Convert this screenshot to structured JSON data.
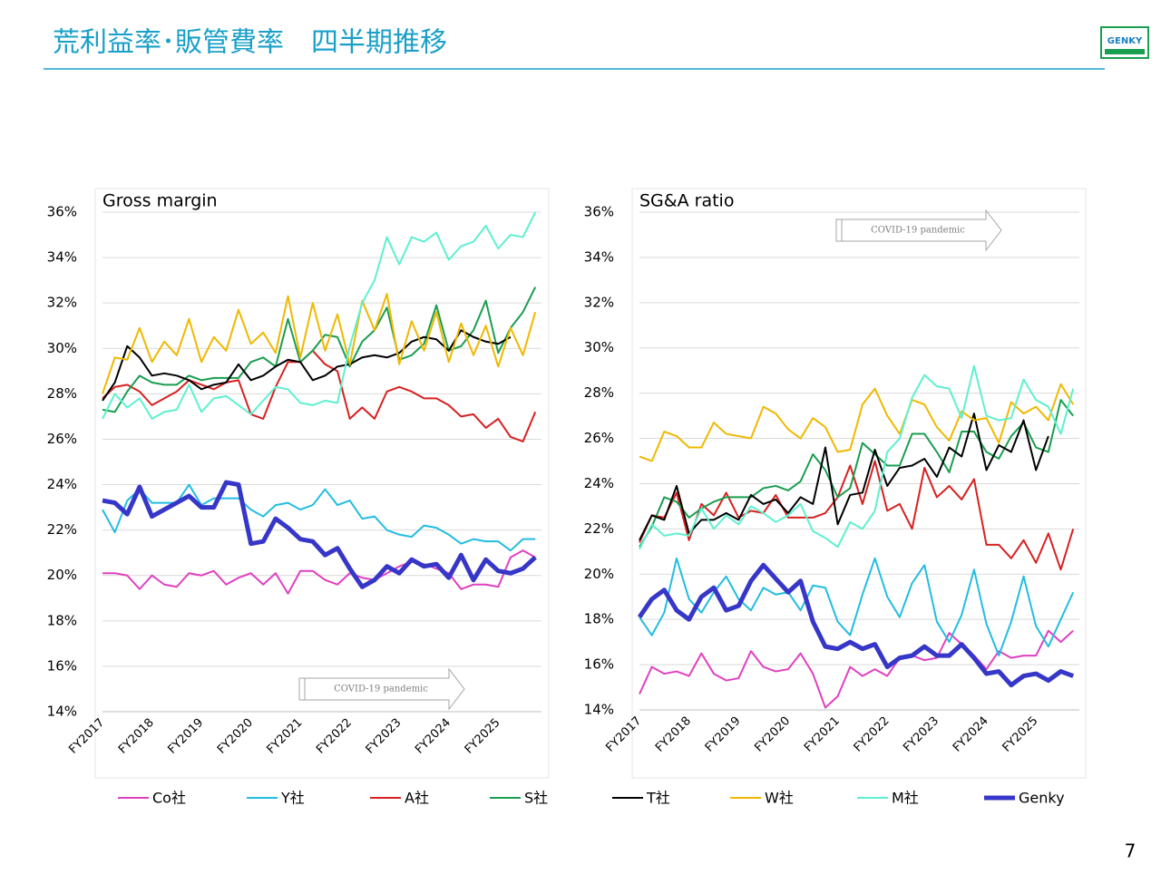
{
  "header": {
    "title": "荒利益率･販管費率　四半期推移",
    "logo": "GENKY"
  },
  "page_number": "7",
  "chart_data": [
    {
      "type": "line",
      "title": "Gross margin",
      "annotation": "COVID-19 pandemic",
      "categories": [
        "FY2017",
        null,
        null,
        null,
        "FY2018",
        null,
        null,
        null,
        "FY2019",
        null,
        null,
        null,
        "FY2020",
        null,
        null,
        null,
        "FY2021",
        null,
        null,
        null,
        "FY2022",
        null,
        null,
        null,
        "FY2023",
        null,
        null,
        null,
        "FY2024",
        null,
        null,
        null,
        "FY2025",
        null,
        null,
        null
      ],
      "ylim": [
        14,
        36
      ],
      "yticks": [
        {
          "value": 14,
          "label": "14%"
        },
        {
          "value": 16,
          "label": "16%"
        },
        {
          "value": 18,
          "label": "18%"
        },
        {
          "value": 20,
          "label": "20%"
        },
        {
          "value": 22,
          "label": "22%"
        },
        {
          "value": 24,
          "label": "24%"
        },
        {
          "value": 26,
          "label": "26%"
        },
        {
          "value": 28,
          "label": "28%"
        },
        {
          "value": 30,
          "label": "30%"
        },
        {
          "value": 32,
          "label": "32%"
        },
        {
          "value": 34,
          "label": "34%"
        },
        {
          "value": 36,
          "label": "36%"
        }
      ],
      "grid": true,
      "series": [
        {
          "name": "Co社",
          "color": "#e040c0",
          "values": [
            20.1,
            20.1,
            20.0,
            19.4,
            20.0,
            19.6,
            19.5,
            20.1,
            20.0,
            20.2,
            19.6,
            19.9,
            20.1,
            19.6,
            20.1,
            19.2,
            20.2,
            20.2,
            19.8,
            19.6,
            20.1,
            19.9,
            19.8,
            20.1,
            20.4,
            20.6,
            20.5,
            20.3,
            20.1,
            19.4,
            19.6,
            19.6,
            19.5,
            20.8,
            21.1,
            20.8
          ]
        },
        {
          "name": "Y社",
          "color": "#22bde0",
          "values": [
            22.9,
            21.9,
            23.3,
            23.8,
            23.2,
            23.2,
            23.2,
            24.0,
            23.1,
            23.4,
            23.4,
            23.4,
            22.9,
            22.6,
            23.1,
            23.2,
            22.9,
            23.1,
            23.8,
            23.1,
            23.3,
            22.5,
            22.6,
            22.0,
            21.8,
            21.7,
            22.2,
            22.1,
            21.8,
            21.4,
            21.6,
            21.5,
            21.5,
            21.1,
            21.6,
            21.6
          ]
        },
        {
          "name": "A社",
          "color": "#d82020",
          "values": [
            27.8,
            28.3,
            28.4,
            28.1,
            27.5,
            27.8,
            28.1,
            28.6,
            28.4,
            28.2,
            28.5,
            28.6,
            27.1,
            26.9,
            28.3,
            29.4,
            29.4,
            29.9,
            29.3,
            29.0,
            26.9,
            27.4,
            26.9,
            28.1,
            28.3,
            28.1,
            27.8,
            27.8,
            27.5,
            27.0,
            27.1,
            26.5,
            26.9,
            26.1,
            25.9,
            27.2
          ]
        },
        {
          "name": "S社",
          "color": "#1a9e50",
          "values": [
            27.3,
            27.2,
            28.1,
            28.8,
            28.5,
            28.4,
            28.4,
            28.8,
            28.6,
            28.7,
            28.7,
            28.7,
            29.4,
            29.6,
            29.2,
            31.3,
            29.4,
            29.9,
            30.6,
            30.5,
            29.2,
            30.3,
            30.8,
            31.8,
            29.5,
            29.7,
            30.2,
            31.9,
            29.9,
            30.1,
            30.8,
            32.1,
            29.8,
            30.9,
            31.6,
            32.7
          ]
        },
        {
          "name": "T社",
          "color": "#000000",
          "values": [
            27.7,
            28.5,
            30.1,
            29.6,
            28.8,
            28.9,
            28.8,
            28.6,
            28.2,
            28.4,
            28.5,
            29.3,
            28.6,
            28.8,
            29.2,
            29.5,
            29.4,
            28.6,
            28.8,
            29.2,
            29.3,
            29.6,
            29.7,
            29.6,
            29.8,
            30.3,
            30.5,
            30.4,
            29.9,
            30.8,
            30.5,
            30.3,
            30.2,
            30.5,
            null,
            null
          ]
        },
        {
          "name": "W社",
          "color": "#f0b800",
          "values": [
            28.0,
            29.6,
            29.5,
            30.9,
            29.4,
            30.3,
            29.7,
            31.3,
            29.4,
            30.5,
            29.9,
            31.7,
            30.2,
            30.7,
            29.8,
            32.3,
            29.6,
            32.0,
            29.9,
            31.5,
            29.3,
            32.1,
            30.8,
            32.4,
            29.3,
            31.2,
            29.9,
            31.6,
            29.4,
            31.1,
            29.7,
            31.0,
            29.2,
            30.9,
            29.7,
            31.6
          ]
        },
        {
          "name": "M社",
          "color": "#5ef0d0",
          "values": [
            26.9,
            28.0,
            27.4,
            27.8,
            26.9,
            27.2,
            27.3,
            28.4,
            27.2,
            27.8,
            27.9,
            27.5,
            27.1,
            27.7,
            28.3,
            28.2,
            27.6,
            27.5,
            27.7,
            27.6,
            30.1,
            32.0,
            33.0,
            34.9,
            33.7,
            34.9,
            34.7,
            35.1,
            33.9,
            34.5,
            34.7,
            35.4,
            34.4,
            35.0,
            34.9,
            36.0
          ]
        },
        {
          "name": "Genky",
          "color": "#3636c8",
          "values": [
            23.3,
            23.2,
            22.7,
            23.9,
            22.6,
            22.9,
            23.2,
            23.5,
            23.0,
            23.0,
            24.1,
            24.0,
            21.4,
            21.5,
            22.5,
            22.1,
            21.6,
            21.5,
            20.9,
            21.2,
            20.3,
            19.5,
            19.8,
            20.4,
            20.1,
            20.7,
            20.4,
            20.5,
            19.9,
            20.9,
            19.8,
            20.7,
            20.2,
            20.1,
            20.3,
            20.8
          ]
        }
      ]
    },
    {
      "type": "line",
      "title": "SG&A ratio",
      "annotation": "COVID-19 pandemic",
      "categories": [
        "FY2017",
        null,
        null,
        null,
        "FY2018",
        null,
        null,
        null,
        "FY2019",
        null,
        null,
        null,
        "FY2020",
        null,
        null,
        null,
        "FY2021",
        null,
        null,
        null,
        "FY2022",
        null,
        null,
        null,
        "FY2023",
        null,
        null,
        null,
        "FY2024",
        null,
        null,
        null,
        "FY2025",
        null,
        null,
        null
      ],
      "ylim": [
        14,
        36
      ],
      "yticks": [
        {
          "value": 14,
          "label": "14%"
        },
        {
          "value": 16,
          "label": "16%"
        },
        {
          "value": 18,
          "label": "18%"
        },
        {
          "value": 20,
          "label": "20%"
        },
        {
          "value": 22,
          "label": "22%"
        },
        {
          "value": 24,
          "label": "24%"
        },
        {
          "value": 26,
          "label": "26%"
        },
        {
          "value": 28,
          "label": "28%"
        },
        {
          "value": 30,
          "label": "30%"
        },
        {
          "value": 32,
          "label": "32%"
        },
        {
          "value": 34,
          "label": "34%"
        },
        {
          "value": 36,
          "label": "36%"
        }
      ],
      "grid": true,
      "series": [
        {
          "name": "Co社",
          "color": "#e040c0",
          "values": [
            14.7,
            15.9,
            15.6,
            15.7,
            15.5,
            16.5,
            15.6,
            15.3,
            15.4,
            16.6,
            15.9,
            15.7,
            15.8,
            16.5,
            15.6,
            14.1,
            14.6,
            15.9,
            15.5,
            15.8,
            15.5,
            16.3,
            16.4,
            16.2,
            16.3,
            17.4,
            16.9,
            16.4,
            15.8,
            16.6,
            16.3,
            16.4,
            16.4,
            17.5,
            17.0,
            17.5
          ]
        },
        {
          "name": "Y社",
          "color": "#22bde0",
          "values": [
            18.1,
            17.3,
            18.3,
            20.7,
            18.9,
            18.3,
            19.2,
            19.9,
            18.9,
            18.4,
            19.4,
            19.1,
            19.2,
            18.4,
            19.5,
            19.4,
            17.9,
            17.3,
            19.1,
            20.7,
            19.0,
            18.1,
            19.6,
            20.4,
            17.9,
            17.0,
            18.2,
            20.2,
            17.8,
            16.4,
            17.9,
            19.9,
            17.7,
            16.8,
            18.0,
            19.2
          ]
        },
        {
          "name": "A社",
          "color": "#d82020",
          "values": [
            21.4,
            22.6,
            22.5,
            23.6,
            21.5,
            23.1,
            22.6,
            23.6,
            22.5,
            22.8,
            22.7,
            23.5,
            22.5,
            22.5,
            22.5,
            22.7,
            23.4,
            24.8,
            23.1,
            25.0,
            22.8,
            23.1,
            22.0,
            24.7,
            23.4,
            23.9,
            23.3,
            24.2,
            21.3,
            21.3,
            20.7,
            21.5,
            20.5,
            21.8,
            20.2,
            22.0
          ]
        },
        {
          "name": "S社",
          "color": "#1a9e50",
          "values": [
            21.2,
            22.1,
            23.4,
            23.2,
            22.5,
            22.9,
            23.2,
            23.4,
            23.4,
            23.4,
            23.8,
            23.9,
            23.7,
            24.1,
            25.3,
            24.6,
            23.4,
            23.8,
            25.8,
            25.3,
            24.8,
            24.8,
            26.2,
            26.2,
            25.4,
            24.5,
            26.3,
            26.3,
            25.4,
            25.1,
            26.1,
            26.7,
            25.6,
            25.4,
            27.7,
            27.0
          ]
        },
        {
          "name": "T社",
          "color": "#000000",
          "values": [
            21.5,
            22.6,
            22.4,
            23.9,
            21.8,
            22.4,
            22.4,
            22.7,
            22.4,
            23.5,
            23.1,
            23.3,
            22.7,
            23.4,
            23.1,
            25.6,
            22.2,
            23.5,
            23.6,
            25.5,
            23.9,
            24.7,
            24.8,
            25.1,
            24.3,
            25.6,
            25.2,
            27.1,
            24.6,
            25.7,
            25.4,
            26.8,
            24.6,
            26.1,
            null,
            null
          ]
        },
        {
          "name": "W社",
          "color": "#f0b800",
          "values": [
            25.2,
            25.0,
            26.3,
            26.1,
            25.6,
            25.6,
            26.7,
            26.2,
            26.1,
            26.0,
            27.4,
            27.1,
            26.4,
            26.0,
            26.9,
            26.5,
            25.4,
            25.5,
            27.5,
            28.2,
            27.0,
            26.2,
            27.7,
            27.5,
            26.5,
            25.9,
            27.2,
            26.8,
            26.9,
            25.8,
            27.6,
            27.1,
            27.4,
            26.8,
            28.4,
            27.5
          ]
        },
        {
          "name": "M社",
          "color": "#5ef0d0",
          "values": [
            21.1,
            22.2,
            21.7,
            21.8,
            21.7,
            22.9,
            22.0,
            22.6,
            22.2,
            23.0,
            22.7,
            22.3,
            22.6,
            23.1,
            21.9,
            21.6,
            21.2,
            22.3,
            22.0,
            22.8,
            25.4,
            26.0,
            27.8,
            28.8,
            28.3,
            28.2,
            26.9,
            29.2,
            27.0,
            26.8,
            26.9,
            28.6,
            27.7,
            27.4,
            26.2,
            28.2
          ]
        },
        {
          "name": "Genky",
          "color": "#3636c8",
          "values": [
            18.1,
            18.9,
            19.3,
            18.4,
            18.0,
            19.0,
            19.4,
            18.4,
            18.6,
            19.7,
            20.4,
            19.8,
            19.2,
            19.7,
            17.9,
            16.8,
            16.7,
            17.0,
            16.7,
            16.9,
            15.9,
            16.3,
            16.4,
            16.8,
            16.4,
            16.4,
            16.9,
            16.3,
            15.6,
            15.7,
            15.1,
            15.5,
            15.6,
            15.3,
            15.7,
            15.5
          ]
        }
      ]
    }
  ]
}
